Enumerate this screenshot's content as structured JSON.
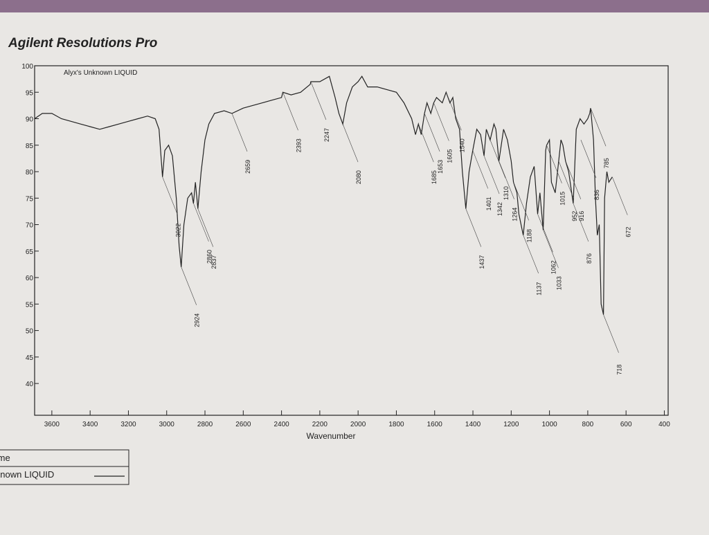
{
  "chart_data": {
    "type": "line",
    "title": "Agilent Resolutions Pro",
    "annotation": "Alyx's Unknown LIQUID",
    "x_label": "Wavenumber",
    "legend_header": "Name",
    "xlim": [
      3690,
      380
    ],
    "ylim": [
      34,
      100
    ],
    "xticks": [
      3600,
      3400,
      3200,
      3000,
      2800,
      2600,
      2400,
      2200,
      2000,
      1800,
      1600,
      1400,
      1200,
      1000,
      800,
      600,
      400
    ],
    "yticks": [
      40,
      45,
      50,
      55,
      60,
      65,
      70,
      75,
      80,
      85,
      90,
      95,
      100
    ],
    "x": [
      3690,
      3650,
      3600,
      3550,
      3500,
      3450,
      3400,
      3350,
      3300,
      3250,
      3200,
      3150,
      3100,
      3060,
      3040,
      3022,
      3010,
      2990,
      2970,
      2950,
      2935,
      2924,
      2910,
      2890,
      2870,
      2860,
      2850,
      2837,
      2820,
      2800,
      2780,
      2750,
      2700,
      2659,
      2600,
      2500,
      2450,
      2400,
      2393,
      2350,
      2300,
      2250,
      2247,
      2200,
      2150,
      2120,
      2100,
      2080,
      2060,
      2030,
      2000,
      1980,
      1950,
      1900,
      1850,
      1800,
      1760,
      1720,
      1700,
      1685,
      1670,
      1653,
      1640,
      1620,
      1605,
      1590,
      1560,
      1540,
      1520,
      1505,
      1490,
      1470,
      1455,
      1437,
      1420,
      1401,
      1380,
      1360,
      1342,
      1330,
      1310,
      1290,
      1280,
      1264,
      1240,
      1220,
      1200,
      1188,
      1170,
      1160,
      1137,
      1120,
      1100,
      1080,
      1062,
      1050,
      1033,
      1020,
      1015,
      1000,
      990,
      970,
      952,
      940,
      930,
      916,
      900,
      876,
      860,
      840,
      820,
      800,
      790,
      785,
      770,
      760,
      750,
      740,
      730,
      718,
      712,
      700,
      690,
      672
    ],
    "series": [
      {
        "name": "Alyx's Unknown LIQUID",
        "color": "#222222",
        "values": [
          90,
          91,
          91,
          90,
          89.5,
          89,
          88.5,
          88,
          88.5,
          89,
          89.5,
          90,
          90.5,
          90,
          88,
          79,
          84,
          85,
          83,
          75,
          66,
          62,
          70,
          75,
          76,
          74,
          78,
          73,
          80,
          86,
          89,
          91,
          91.5,
          91,
          92,
          93,
          93.5,
          94,
          95,
          94.5,
          95,
          96.5,
          97,
          97,
          98,
          94,
          91,
          89,
          93,
          96,
          97,
          98,
          96,
          96,
          95.5,
          95,
          93,
          90,
          87,
          89,
          87,
          91,
          93,
          91,
          93,
          94,
          93,
          95,
          93,
          94,
          90,
          88,
          80,
          73,
          80,
          84,
          88,
          87,
          83,
          88,
          86,
          89,
          88,
          82,
          88,
          86,
          82,
          78,
          76,
          72,
          68,
          74,
          79,
          81,
          72,
          76,
          69,
          84,
          85,
          86,
          78,
          76,
          82,
          86,
          85,
          82,
          80,
          74,
          88,
          90,
          89,
          90,
          91,
          92,
          86,
          75,
          68,
          70,
          55,
          53,
          75,
          80,
          78,
          79
        ]
      }
    ],
    "peak_labels": {
      "x": [
        3022,
        2924,
        2860,
        2837,
        2659,
        2393,
        2247,
        2080,
        1685,
        1653,
        1605,
        1540,
        1437,
        1401,
        1342,
        1310,
        1264,
        1188,
        1137,
        1062,
        1033,
        1015,
        952,
        916,
        876,
        836,
        785,
        718,
        672
      ],
      "y": [
        79,
        62,
        74,
        73,
        91,
        95,
        97,
        89,
        89,
        91,
        93,
        95,
        73,
        84,
        83,
        86,
        82,
        78,
        68,
        72,
        69,
        85,
        82,
        82,
        74,
        86,
        92,
        53,
        79
      ]
    }
  }
}
